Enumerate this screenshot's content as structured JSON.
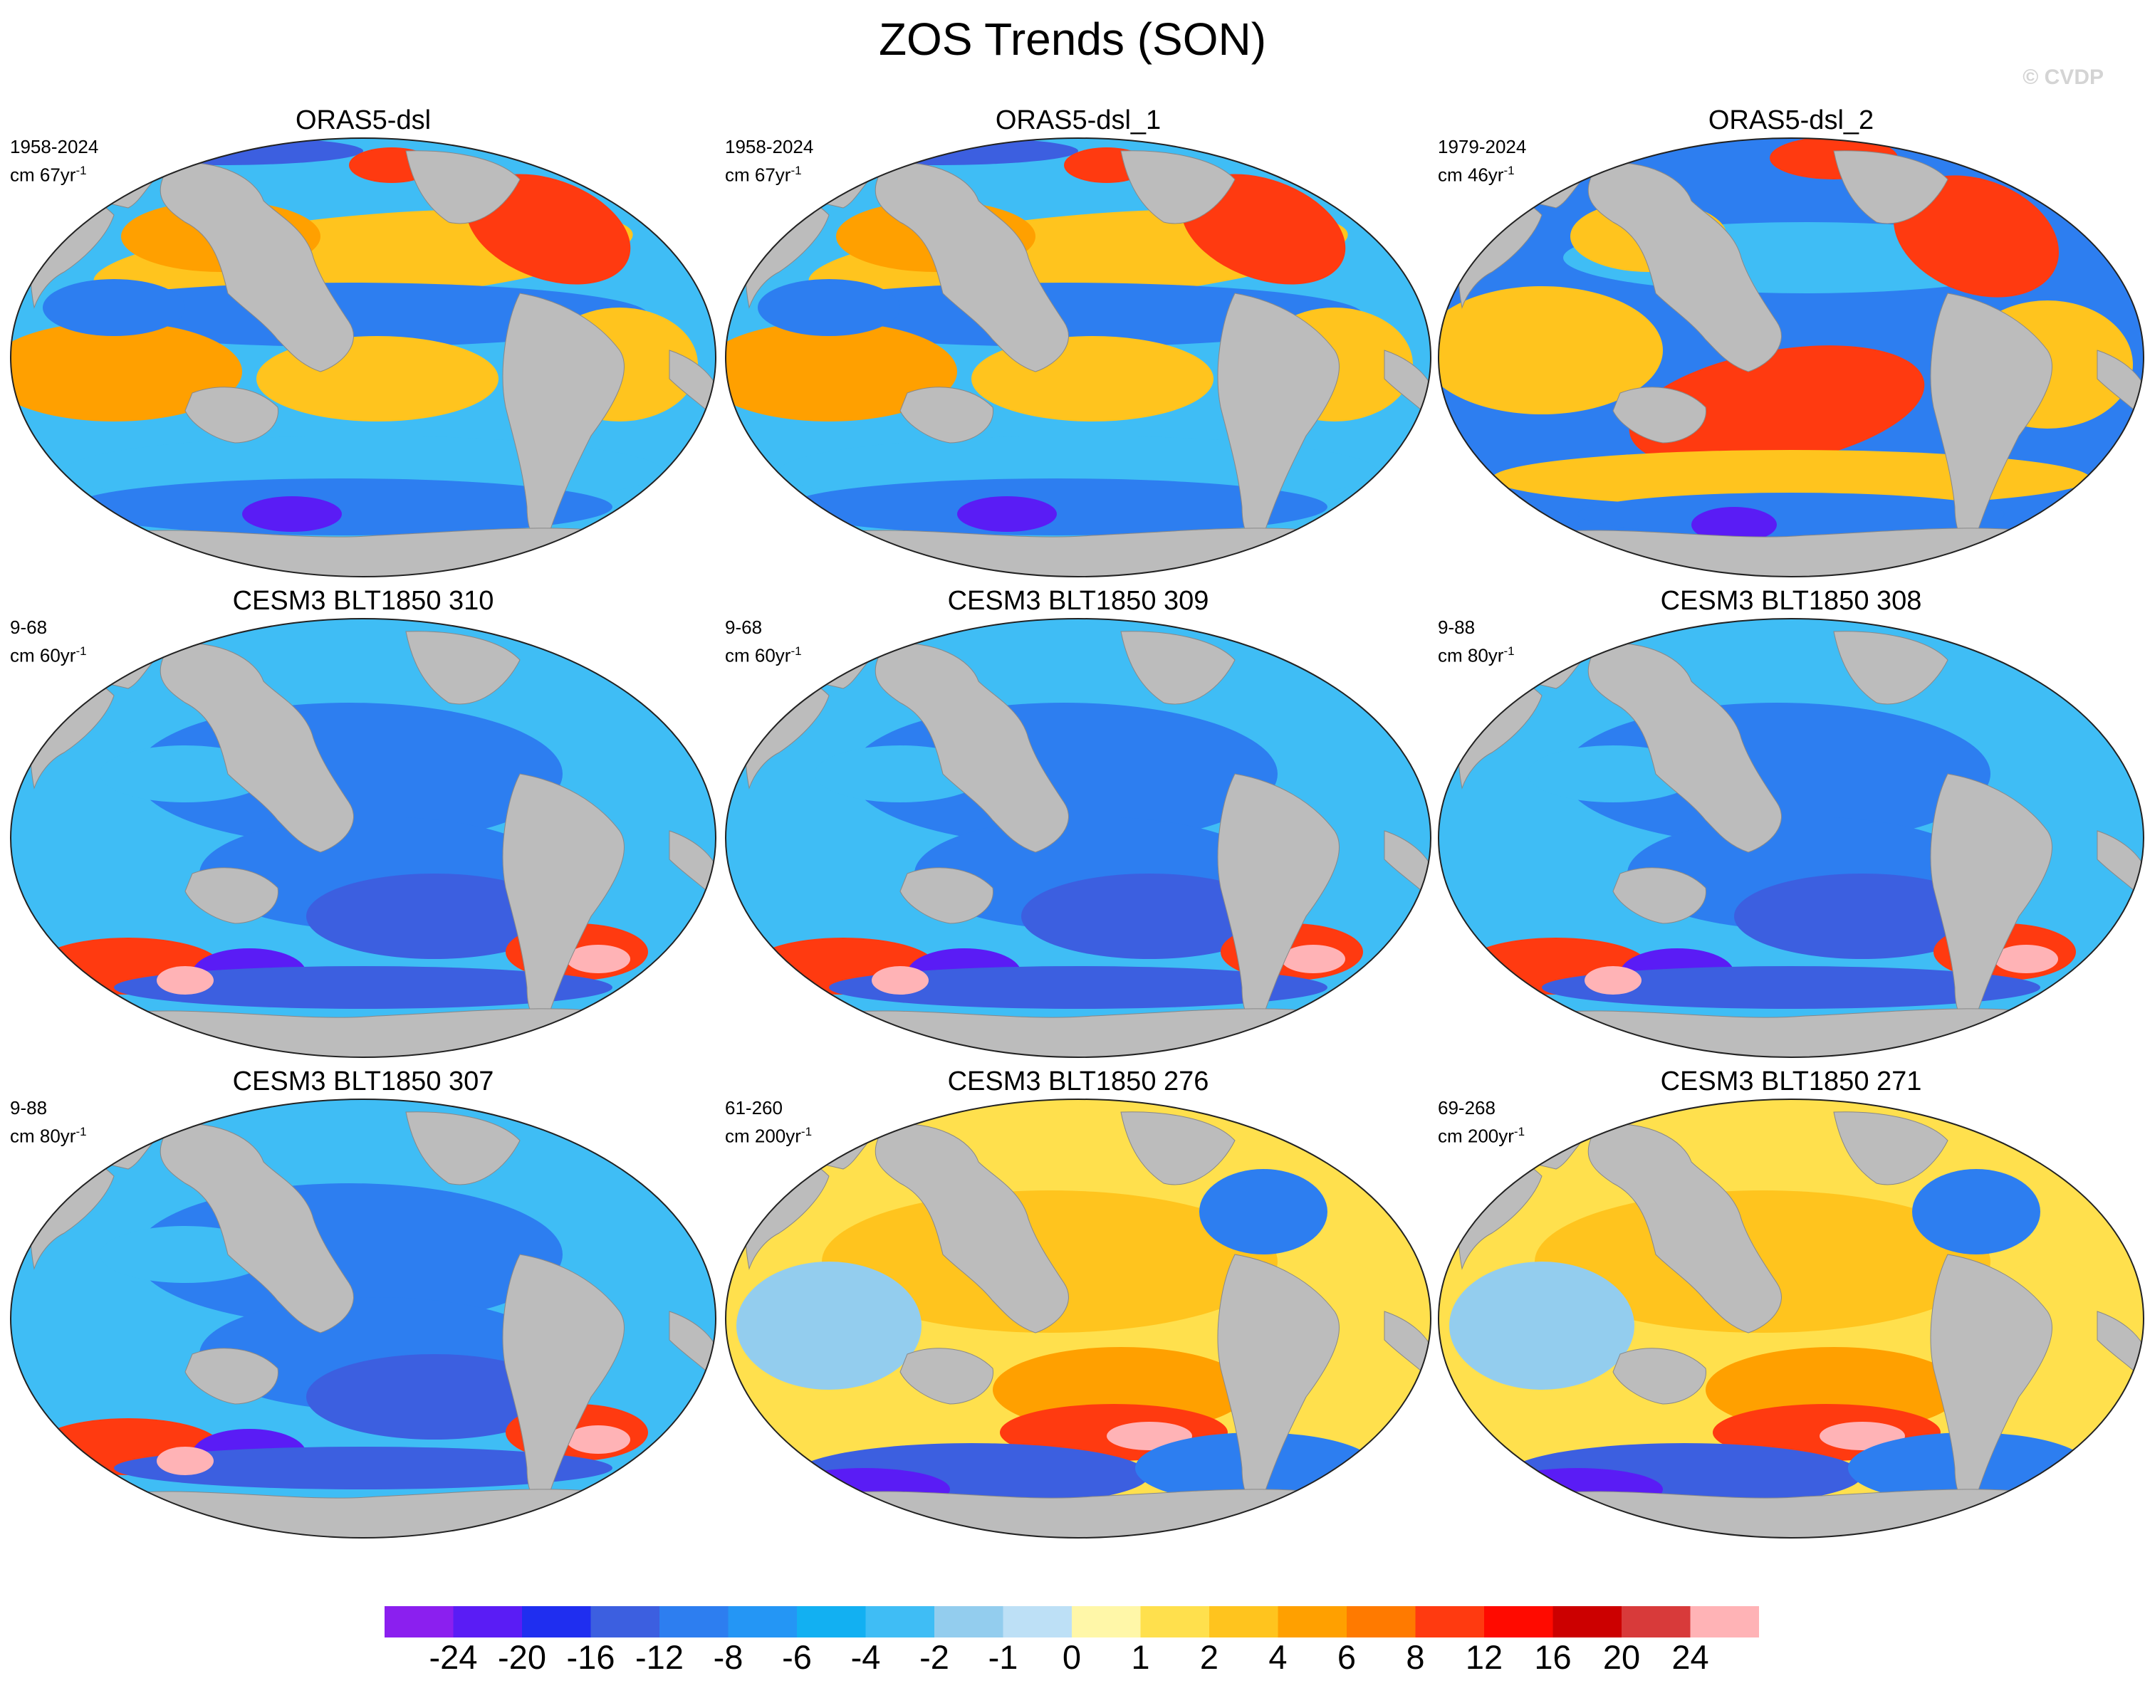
{
  "title": "ZOS Trends (SON)",
  "watermark": "© CVDP",
  "panels": [
    {
      "title": "ORAS5-dsl",
      "years": "1958-2024",
      "units": "cm 67yr",
      "unit_exp": "-1",
      "pattern": "oras_a"
    },
    {
      "title": "ORAS5-dsl_1",
      "years": "1958-2024",
      "units": "cm 67yr",
      "unit_exp": "-1",
      "pattern": "oras_a"
    },
    {
      "title": "ORAS5-dsl_2",
      "years": "1979-2024",
      "units": "cm 46yr",
      "unit_exp": "-1",
      "pattern": "oras_b"
    },
    {
      "title": "CESM3 BLT1850 310",
      "years": "9-68",
      "units": "cm 60yr",
      "unit_exp": "-1",
      "pattern": "cesm_blue"
    },
    {
      "title": "CESM3 BLT1850 309",
      "years": "9-68",
      "units": "cm 60yr",
      "unit_exp": "-1",
      "pattern": "cesm_blue"
    },
    {
      "title": "CESM3 BLT1850 308",
      "years": "9-88",
      "units": "cm 80yr",
      "unit_exp": "-1",
      "pattern": "cesm_blue"
    },
    {
      "title": "CESM3 BLT1850 307",
      "years": "9-88",
      "units": "cm 80yr",
      "unit_exp": "-1",
      "pattern": "cesm_blue"
    },
    {
      "title": "CESM3 BLT1850 276",
      "years": "61-260",
      "units": "cm 200yr",
      "unit_exp": "-1",
      "pattern": "cesm_yellow"
    },
    {
      "title": "CESM3 BLT1850 271",
      "years": "69-268",
      "units": "cm 200yr",
      "unit_exp": "-1",
      "pattern": "cesm_yellow"
    }
  ],
  "colorbar": {
    "colors": [
      "#8b1fef",
      "#5a1cf5",
      "#1f2ef0",
      "#3c5fe0",
      "#2d7ef0",
      "#2496f5",
      "#12b0f2",
      "#3fbdf5",
      "#93cdee",
      "#bde0f6",
      "#fff7a8",
      "#ffe04d",
      "#ffc41e",
      "#ffa000",
      "#ff7a00",
      "#ff3a10",
      "#ff0a00",
      "#cc0000",
      "#d83a3a",
      "#ffb3b6"
    ],
    "labels": [
      "-24",
      "-20",
      "-16",
      "-12",
      "-8",
      "-6",
      "-4",
      "-2",
      "-1",
      "0",
      "1",
      "2",
      "4",
      "6",
      "8",
      "12",
      "16",
      "20",
      "24"
    ]
  },
  "ocean_colors": {
    "land": "#bcbcbc",
    "deep_blue": "#3c5fe0",
    "mid_blue": "#2d7ef0",
    "light_blue": "#3fbdf5",
    "pale_blue": "#93cdee",
    "yellow": "#ffe04d",
    "orange": "#ffc41e",
    "dark_orange": "#ffa000",
    "red": "#ff3a10",
    "purple": "#5a1cf5",
    "pink": "#ffb3b6"
  }
}
